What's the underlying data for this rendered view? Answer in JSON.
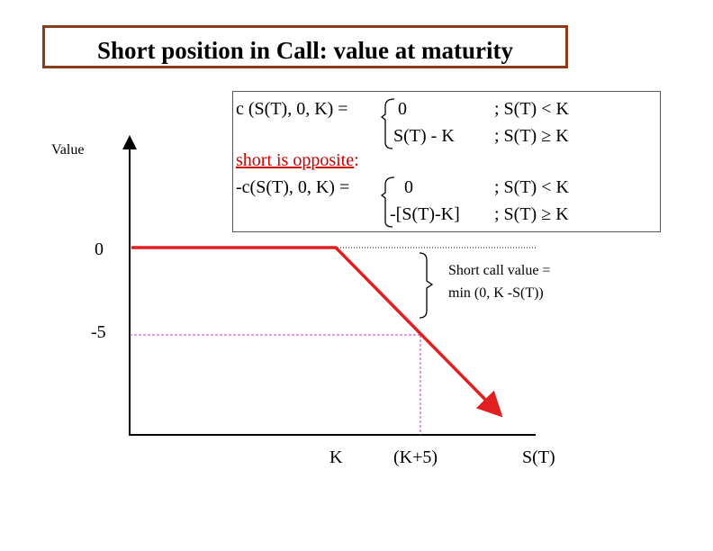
{
  "title": "Short position in Call: value at maturity",
  "formula": {
    "call_lhs": "c (S(T), 0, K)  =",
    "call_case1_value": "0",
    "call_case2_value": "S(T) - K",
    "call_case1_cond": ";  S(T) < K",
    "call_case2_cond": ";  S(T) ≥ K",
    "short_note_underlined": "short is opposite",
    "short_note_colon": ":",
    "short_lhs": "-c(S(T), 0, K) =",
    "short_case1_value": "0",
    "short_case2_value": "-[S(T)-K]",
    "short_case1_cond": ";  S(T) < K",
    "short_case2_cond": ";  S(T)  ≥  K"
  },
  "axes": {
    "y_label": "Value",
    "x_label": "S(T)",
    "y_ticks": [
      "0",
      "-5"
    ],
    "x_ticks": [
      "K",
      "(K+5)"
    ]
  },
  "annotation": {
    "line1": "Short call value =",
    "line2": "min (0, K -S(T))"
  },
  "colors": {
    "title_border": "#8B3A1A",
    "payoff_line": "#E02020",
    "guide_line": "#CC33CC",
    "red_text": "#CC0000"
  }
}
